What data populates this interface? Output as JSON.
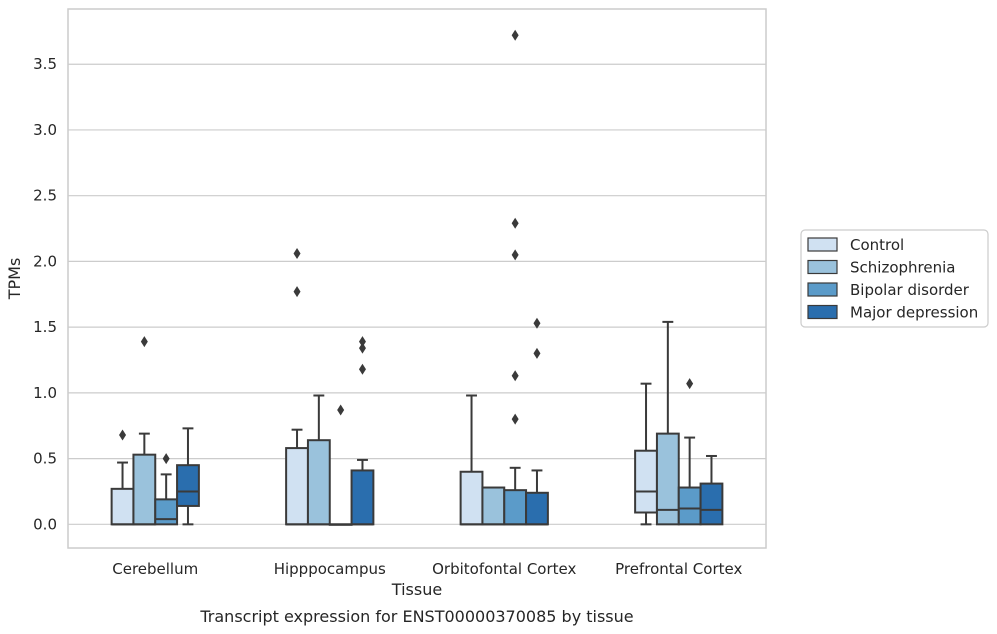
{
  "chart_data": {
    "type": "box",
    "title": "",
    "caption": "Transcript expression for ENST00000370085 by tissue",
    "xlabel": "Tissue",
    "ylabel": "TPMs",
    "ylim": [
      -0.18,
      3.92
    ],
    "yticks": [
      0.0,
      0.5,
      1.0,
      1.5,
      2.0,
      2.5,
      3.0,
      3.5
    ],
    "ytick_labels": [
      "0.0",
      "0.5",
      "1.0",
      "1.5",
      "2.0",
      "2.5",
      "3.0",
      "3.5"
    ],
    "grid": true,
    "legend_position": "outside-right",
    "categories": [
      "Cerebellum",
      "Hipppocampus",
      "Orbitofontal Cortex",
      "Prefrontal Cortex"
    ],
    "series": [
      {
        "name": "Control",
        "color": "#d0e1f2",
        "boxes": [
          {
            "q1": 0.0,
            "median": 0.0,
            "q3": 0.27,
            "whisker_low": 0.0,
            "whisker_high": 0.47,
            "outliers": [
              0.68
            ]
          },
          {
            "q1": 0.0,
            "median": 0.0,
            "q3": 0.58,
            "whisker_low": 0.0,
            "whisker_high": 0.72,
            "outliers": [
              1.77,
              2.06
            ]
          },
          {
            "q1": 0.0,
            "median": 0.0,
            "q3": 0.4,
            "whisker_low": 0.0,
            "whisker_high": 0.98,
            "outliers": []
          },
          {
            "q1": 0.09,
            "median": 0.25,
            "q3": 0.56,
            "whisker_low": 0.0,
            "whisker_high": 1.07,
            "outliers": []
          }
        ]
      },
      {
        "name": "Schizophrenia",
        "color": "#9ac2dc",
        "boxes": [
          {
            "q1": 0.0,
            "median": 0.0,
            "q3": 0.53,
            "whisker_low": 0.0,
            "whisker_high": 0.69,
            "outliers": [
              1.39
            ]
          },
          {
            "q1": 0.0,
            "median": 0.0,
            "q3": 0.64,
            "whisker_low": 0.0,
            "whisker_high": 0.98,
            "outliers": []
          },
          {
            "q1": 0.0,
            "median": 0.0,
            "q3": 0.28,
            "whisker_low": 0.0,
            "whisker_high": 0.28,
            "outliers": []
          },
          {
            "q1": 0.0,
            "median": 0.11,
            "q3": 0.69,
            "whisker_low": 0.0,
            "whisker_high": 1.54,
            "outliers": []
          }
        ]
      },
      {
        "name": "Bipolar disorder",
        "color": "#5b9bc9",
        "boxes": [
          {
            "q1": 0.0,
            "median": 0.04,
            "q3": 0.19,
            "whisker_low": 0.0,
            "whisker_high": 0.38,
            "outliers": [
              0.5
            ]
          },
          {
            "q1": 0.0,
            "median": 0.0,
            "q3": 0.0,
            "whisker_low": 0.0,
            "whisker_high": 0.0,
            "outliers": [
              0.87
            ]
          },
          {
            "q1": 0.0,
            "median": 0.0,
            "q3": 0.26,
            "whisker_low": 0.0,
            "whisker_high": 0.43,
            "outliers": [
              0.8,
              1.13,
              2.05,
              2.29,
              3.72
            ]
          },
          {
            "q1": 0.0,
            "median": 0.12,
            "q3": 0.28,
            "whisker_low": 0.0,
            "whisker_high": 0.66,
            "outliers": [
              1.07
            ]
          }
        ]
      },
      {
        "name": "Major depression",
        "color": "#2a6eae",
        "boxes": [
          {
            "q1": 0.14,
            "median": 0.25,
            "q3": 0.45,
            "whisker_low": 0.0,
            "whisker_high": 0.73,
            "outliers": []
          },
          {
            "q1": 0.0,
            "median": 0.0,
            "q3": 0.41,
            "whisker_low": 0.0,
            "whisker_high": 0.49,
            "outliers": [
              1.18,
              1.34,
              1.39
            ]
          },
          {
            "q1": 0.0,
            "median": 0.0,
            "q3": 0.24,
            "whisker_low": 0.0,
            "whisker_high": 0.41,
            "outliers": [
              1.3,
              1.53
            ]
          },
          {
            "q1": 0.0,
            "median": 0.11,
            "q3": 0.31,
            "whisker_low": 0.0,
            "whisker_high": 0.52,
            "outliers": []
          }
        ]
      }
    ]
  }
}
